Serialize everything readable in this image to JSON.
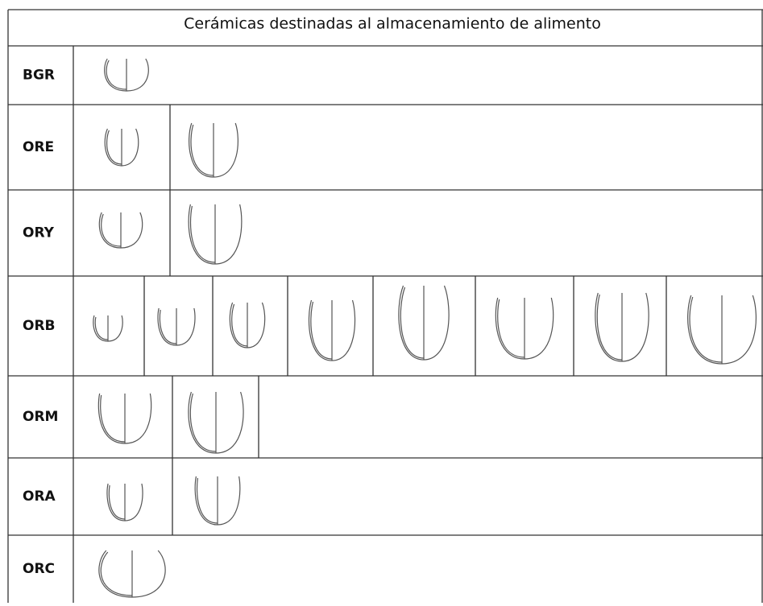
{
  "header": {
    "title": "Cerámicas destinadas al almacenamiento de alimento"
  },
  "table": {
    "rows": [
      {
        "label": "BGR"
      },
      {
        "label": "ORE"
      },
      {
        "label": "ORY"
      },
      {
        "label": "ORB"
      },
      {
        "label": "ORM"
      },
      {
        "label": "ORA"
      },
      {
        "label": "ORC"
      }
    ]
  }
}
